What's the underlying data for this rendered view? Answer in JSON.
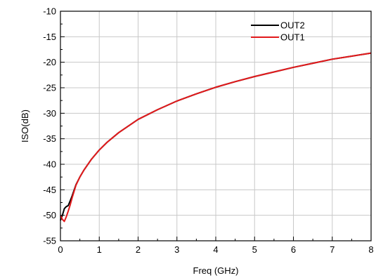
{
  "chart_data": {
    "type": "line",
    "title": "",
    "xlabel": "Freq (GHz)",
    "ylabel": "ISO(dB)",
    "xlim": [
      0,
      8
    ],
    "ylim": [
      -55,
      -10
    ],
    "x_ticks": [
      "0",
      "1",
      "2",
      "3",
      "4",
      "5",
      "6",
      "7",
      "8"
    ],
    "y_ticks": [
      "-10",
      "-15",
      "-20",
      "-25",
      "-30",
      "-35",
      "-40",
      "-45",
      "-50",
      "-55"
    ],
    "grid": true,
    "legend_position": "top-right",
    "series": [
      {
        "name": "OUT2",
        "color": "#000000",
        "x": [
          0.0,
          0.05,
          0.1,
          0.15,
          0.2,
          0.25,
          0.3,
          0.4,
          0.5,
          0.6,
          0.8,
          1.0,
          1.2,
          1.5,
          2.0,
          2.5,
          3.0,
          3.5,
          4.0,
          4.5,
          5.0,
          5.5,
          6.0,
          6.5,
          7.0,
          7.5,
          8.0
        ],
        "y": [
          -51.0,
          -50.0,
          -48.7,
          -48.3,
          -48.1,
          -47.2,
          -46.2,
          -44.0,
          -42.5,
          -41.2,
          -39.0,
          -37.2,
          -35.7,
          -33.8,
          -31.2,
          -29.3,
          -27.6,
          -26.2,
          -24.9,
          -23.8,
          -22.8,
          -21.9,
          -21.0,
          -20.2,
          -19.4,
          -18.8,
          -18.2
        ]
      },
      {
        "name": "OUT1",
        "color": "#e31a1c",
        "x": [
          0.0,
          0.05,
          0.1,
          0.15,
          0.2,
          0.25,
          0.3,
          0.4,
          0.5,
          0.6,
          0.8,
          1.0,
          1.2,
          1.5,
          2.0,
          2.5,
          3.0,
          3.5,
          4.0,
          4.5,
          5.0,
          5.5,
          6.0,
          6.5,
          7.0,
          7.5,
          8.0
        ],
        "y": [
          -50.0,
          -50.8,
          -51.2,
          -50.3,
          -49.2,
          -48.0,
          -46.6,
          -44.1,
          -42.5,
          -41.2,
          -39.0,
          -37.2,
          -35.7,
          -33.8,
          -31.2,
          -29.3,
          -27.6,
          -26.2,
          -24.9,
          -23.8,
          -22.8,
          -21.9,
          -21.0,
          -20.2,
          -19.4,
          -18.8,
          -18.2
        ]
      }
    ]
  }
}
